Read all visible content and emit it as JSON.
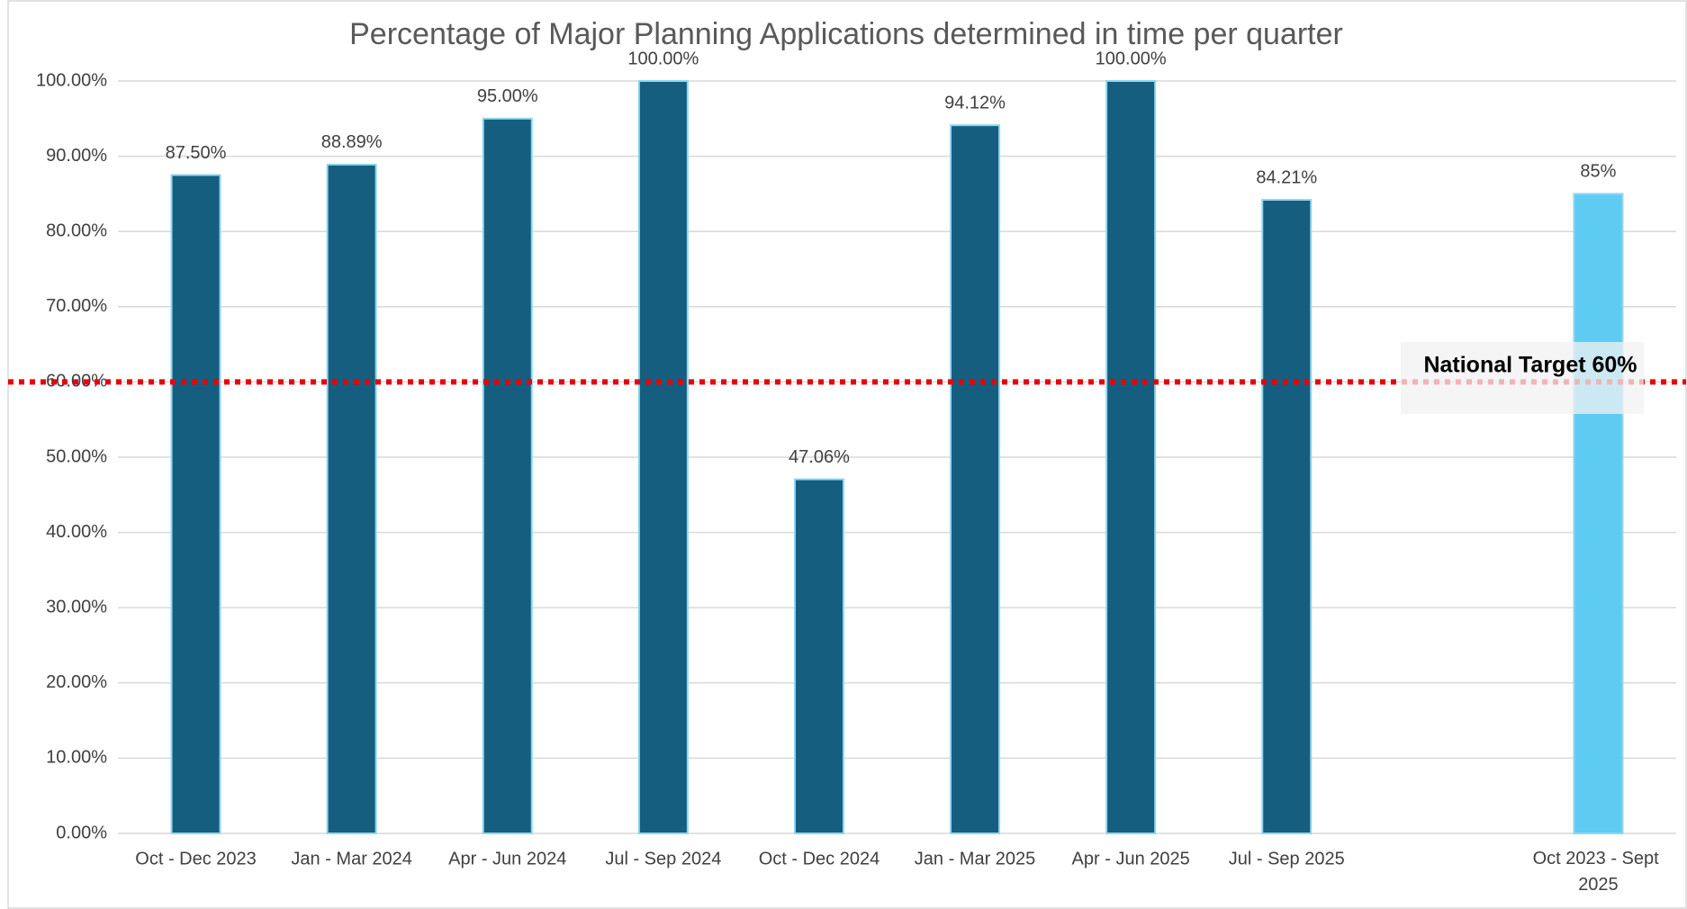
{
  "chart_data": {
    "type": "bar",
    "title": "Percentage of Major Planning Applications determined in time per quarter",
    "categories": [
      "Oct - Dec 2023",
      "Jan - Mar 2024",
      "Apr - Jun 2024",
      "Jul - Sep 2024",
      "Oct - Dec 2024",
      "Jan - Mar 2025",
      "Apr - Jun 2025",
      "Jul - Sep 2025",
      null,
      "Oct 2023 - Sept 2025"
    ],
    "values": [
      87.5,
      88.89,
      95,
      100,
      47.06,
      94.12,
      100,
      84.21,
      null,
      85
    ],
    "value_labels": [
      "87.50%",
      "88.89%",
      "95.00%",
      "100.00%",
      "47.06%",
      "94.12%",
      "100.00%",
      "84.21%",
      null,
      "85%"
    ],
    "colors": [
      "#155e80",
      "#155e80",
      "#155e80",
      "#155e80",
      "#155e80",
      "#155e80",
      "#155e80",
      "#155e80",
      "#155e80",
      "#5ecbf3"
    ],
    "ylim": [
      0,
      100
    ],
    "yticks": [
      {
        "value": 0,
        "label": "0.00%"
      },
      {
        "value": 10,
        "label": "10.00%"
      },
      {
        "value": 20,
        "label": "20.00%"
      },
      {
        "value": 30,
        "label": "30.00%"
      },
      {
        "value": 40,
        "label": "40.00%"
      },
      {
        "value": 50,
        "label": "50.00%"
      },
      {
        "value": 60,
        "label": "60.00%"
      },
      {
        "value": 70,
        "label": "70.00%"
      },
      {
        "value": 80,
        "label": "80.00%"
      },
      {
        "value": 90,
        "label": "90.00%"
      },
      {
        "value": 100,
        "label": "100.00%"
      }
    ],
    "grid": true,
    "target": {
      "value": 60,
      "label": "National Target 60%",
      "color": "#e8000b"
    }
  }
}
